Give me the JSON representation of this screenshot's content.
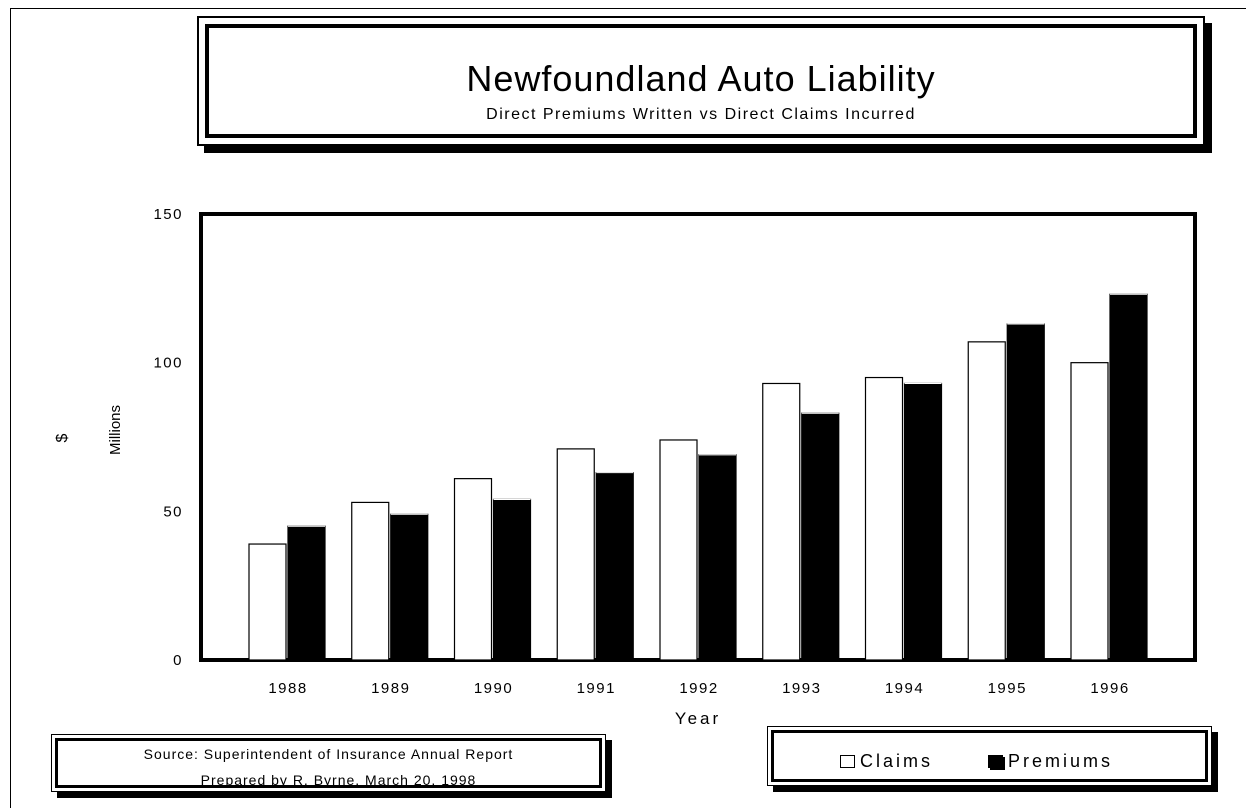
{
  "title": "Newfoundland Auto Liability",
  "subtitle": "Direct Premiums Written vs Direct Claims Incurred",
  "source": {
    "line1": "Source: Superintendent of Insurance Annual Report",
    "line2": "Prepared by R. Byrne, March 20, 1998"
  },
  "legend": {
    "claims": "Claims",
    "premiums": "Premiums"
  },
  "colors": {
    "claims": "#ffffff",
    "premiums": "#000000"
  },
  "chart_data": {
    "type": "bar",
    "title": "Newfoundland Auto Liability",
    "subtitle": "Direct Premiums Written vs Direct Claims Incurred",
    "xlabel": "Year",
    "ylabel": "$ Millions",
    "ylabel_symbol": "$",
    "ylabel_unit": "Millions",
    "categories": [
      "1988",
      "1989",
      "1990",
      "1991",
      "1992",
      "1993",
      "1994",
      "1995",
      "1996"
    ],
    "ylim": [
      0,
      150
    ],
    "yticks": [
      "0",
      "50",
      "100",
      "150"
    ],
    "ytick_values": [
      0,
      50,
      100,
      150
    ],
    "grid": false,
    "legend_position": "bottom-right",
    "series": [
      {
        "name": "Claims",
        "values": [
          39,
          53,
          61,
          71,
          74,
          93,
          95,
          107,
          100
        ]
      },
      {
        "name": "Premiums",
        "values": [
          45,
          49,
          54,
          63,
          69,
          83,
          93,
          113,
          123
        ]
      }
    ]
  }
}
